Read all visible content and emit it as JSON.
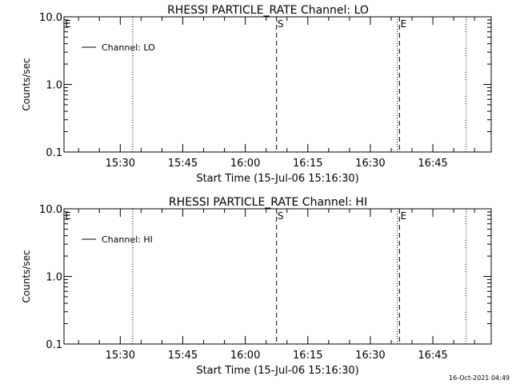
{
  "footer": {
    "timestamp": "16-Oct-2021 04:49"
  },
  "chart_data": [
    {
      "type": "line",
      "title": "RHESSI PARTICLE_RATE Channel: LO",
      "xlabel": "Start Time (15-Jul-06 15:16:30)",
      "ylabel": "Counts/sec",
      "yscale": "log",
      "ylim": [
        0.1,
        10.0
      ],
      "xlim": [
        "15:16:30",
        "16:59:00"
      ],
      "xticks": [
        "15:30",
        "15:45",
        "16:00",
        "16:15",
        "16:30",
        "16:45"
      ],
      "yticks": [
        "0.1",
        "1.0",
        "10.0"
      ],
      "legend": {
        "position": "top-left",
        "entries": [
          "Channel: LO"
        ]
      },
      "series": [
        {
          "name": "Channel: LO",
          "values": []
        }
      ],
      "markers": [
        {
          "label": "E",
          "time": "15:16:30",
          "style": "none"
        },
        {
          "label": "",
          "time": "15:33:00",
          "style": "dotted"
        },
        {
          "label": "S",
          "time": "16:07:30",
          "style": "dashed"
        },
        {
          "label": "",
          "time": "16:36:30",
          "style": "dotted"
        },
        {
          "label": "E",
          "time": "16:37:00",
          "style": "dashed"
        },
        {
          "label": "",
          "time": "16:53:00",
          "style": "dotted"
        }
      ],
      "grid": false
    },
    {
      "type": "line",
      "title": "RHESSI PARTICLE_RATE Channel: HI",
      "xlabel": "Start Time (15-Jul-06 15:16:30)",
      "ylabel": "Counts/sec",
      "yscale": "log",
      "ylim": [
        0.1,
        10.0
      ],
      "xlim": [
        "15:16:30",
        "16:59:00"
      ],
      "xticks": [
        "15:30",
        "15:45",
        "16:00",
        "16:15",
        "16:30",
        "16:45"
      ],
      "yticks": [
        "0.1",
        "1.0",
        "10.0"
      ],
      "legend": {
        "position": "top-left",
        "entries": [
          "Channel: HI"
        ]
      },
      "series": [
        {
          "name": "Channel: HI",
          "values": []
        }
      ],
      "markers": [
        {
          "label": "E",
          "time": "15:16:30",
          "style": "none"
        },
        {
          "label": "",
          "time": "15:33:00",
          "style": "dotted"
        },
        {
          "label": "S",
          "time": "16:07:30",
          "style": "dashed"
        },
        {
          "label": "",
          "time": "16:36:30",
          "style": "dotted"
        },
        {
          "label": "E",
          "time": "16:37:00",
          "style": "dashed"
        },
        {
          "label": "",
          "time": "16:53:00",
          "style": "dotted"
        }
      ],
      "grid": false
    }
  ]
}
